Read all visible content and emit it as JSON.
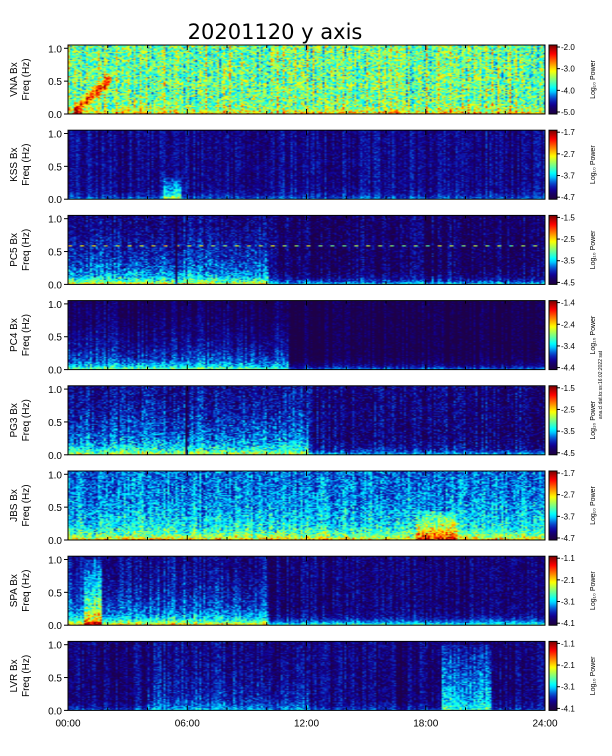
{
  "chart_data": {
    "type": "heatmap",
    "title": "20201120  y  axis",
    "ylabel_line2": "Freq (Hz)",
    "yticks": [
      "0.0",
      "0.5",
      "1.0"
    ],
    "ylim": [
      0,
      1.05
    ],
    "xticks": [
      "00:00",
      "06:00",
      "12:00",
      "18:00",
      "24:00"
    ],
    "xlim_hours": [
      0,
      24
    ],
    "colorbar_label": "Log₁₀ Power",
    "side_note": "ana.cl.dat.to:ss:16:02:2022 sat",
    "panels": [
      {
        "station": "VNA Bx",
        "cbar_ticks": [
          "-2.0",
          "-3.0",
          "-4.0",
          "-5.0"
        ],
        "base": 0.45,
        "noise": 0.18,
        "features": [
          {
            "kind": "streaks",
            "spacing_h": 0.3,
            "strength": 0.12
          },
          {
            "kind": "rising",
            "t0": 0.3,
            "t1": 2.1,
            "f0": 0.05,
            "f1": 0.55,
            "strength": 0.35
          },
          {
            "kind": "lowband",
            "strength": 0.25
          }
        ]
      },
      {
        "station": "KSS Bx",
        "cbar_ticks": [
          "-1.7",
          "-2.7",
          "-3.7",
          "-4.7"
        ],
        "base": 0.12,
        "noise": 0.07,
        "features": [
          {
            "kind": "lowband",
            "strength": 0.18
          },
          {
            "kind": "burst",
            "t0": 4.8,
            "t1": 5.6,
            "fmax": 0.35,
            "strength": 0.35
          }
        ]
      },
      {
        "station": "PC5 Bx",
        "cbar_ticks": [
          "-1.5",
          "-2.5",
          "-3.5",
          "-4.5"
        ],
        "base": 0.08,
        "noise": 0.09,
        "features": [
          {
            "kind": "line",
            "f": 0.6,
            "strength": 0.45,
            "dotted": true
          },
          {
            "kind": "activity",
            "t0": 0,
            "t1": 10,
            "strength": 0.35
          },
          {
            "kind": "gap",
            "t": 5.4
          },
          {
            "kind": "lowband",
            "strength": 0.35
          }
        ]
      },
      {
        "station": "PC4 Bx",
        "cbar_ticks": [
          "-1.4",
          "-2.4",
          "-3.4",
          "-4.4"
        ],
        "base": 0.03,
        "noise": 0.06,
        "features": [
          {
            "kind": "activity",
            "t0": 0,
            "t1": 11,
            "strength": 0.3
          },
          {
            "kind": "lowband",
            "strength": 0.3
          }
        ]
      },
      {
        "station": "PG3 Bx",
        "cbar_ticks": [
          "-1.5",
          "-2.5",
          "-3.5",
          "-4.5"
        ],
        "base": 0.1,
        "noise": 0.1,
        "features": [
          {
            "kind": "activity",
            "t0": 0,
            "t1": 12,
            "strength": 0.35
          },
          {
            "kind": "gap",
            "t": 5.9
          },
          {
            "kind": "lowband",
            "strength": 0.3
          }
        ]
      },
      {
        "station": "JBS Bx",
        "cbar_ticks": [
          "-1.7",
          "-2.7",
          "-3.7",
          "-4.7"
        ],
        "base": 0.22,
        "noise": 0.12,
        "features": [
          {
            "kind": "activity",
            "t0": 0,
            "t1": 24,
            "strength": 0.3
          },
          {
            "kind": "burst",
            "t0": 17.5,
            "t1": 19.5,
            "fmax": 0.45,
            "strength": 0.35
          },
          {
            "kind": "lowband",
            "strength": 0.3
          }
        ]
      },
      {
        "station": "SPA Bx",
        "cbar_ticks": [
          "-1.1",
          "-2.1",
          "-3.1",
          "-4.1"
        ],
        "base": 0.1,
        "noise": 0.08,
        "features": [
          {
            "kind": "activity",
            "t0": 0,
            "t1": 10,
            "strength": 0.3
          },
          {
            "kind": "burst",
            "t0": 0.8,
            "t1": 1.6,
            "fmax": 1.0,
            "strength": 0.4
          },
          {
            "kind": "lowband",
            "strength": 0.45
          }
        ]
      },
      {
        "station": "LVR Bx",
        "cbar_ticks": [
          "-1.1",
          "-2.1",
          "-3.1",
          "-4.1"
        ],
        "base": 0.1,
        "noise": 0.08,
        "features": [
          {
            "kind": "burst",
            "t0": 18.8,
            "t1": 21.2,
            "fmax": 1.0,
            "strength": 0.3
          },
          {
            "kind": "activity",
            "t0": 4,
            "t1": 12,
            "strength": 0.15
          },
          {
            "kind": "gap",
            "t": 16.7
          },
          {
            "kind": "lowband",
            "strength": 0.15
          }
        ]
      }
    ]
  }
}
